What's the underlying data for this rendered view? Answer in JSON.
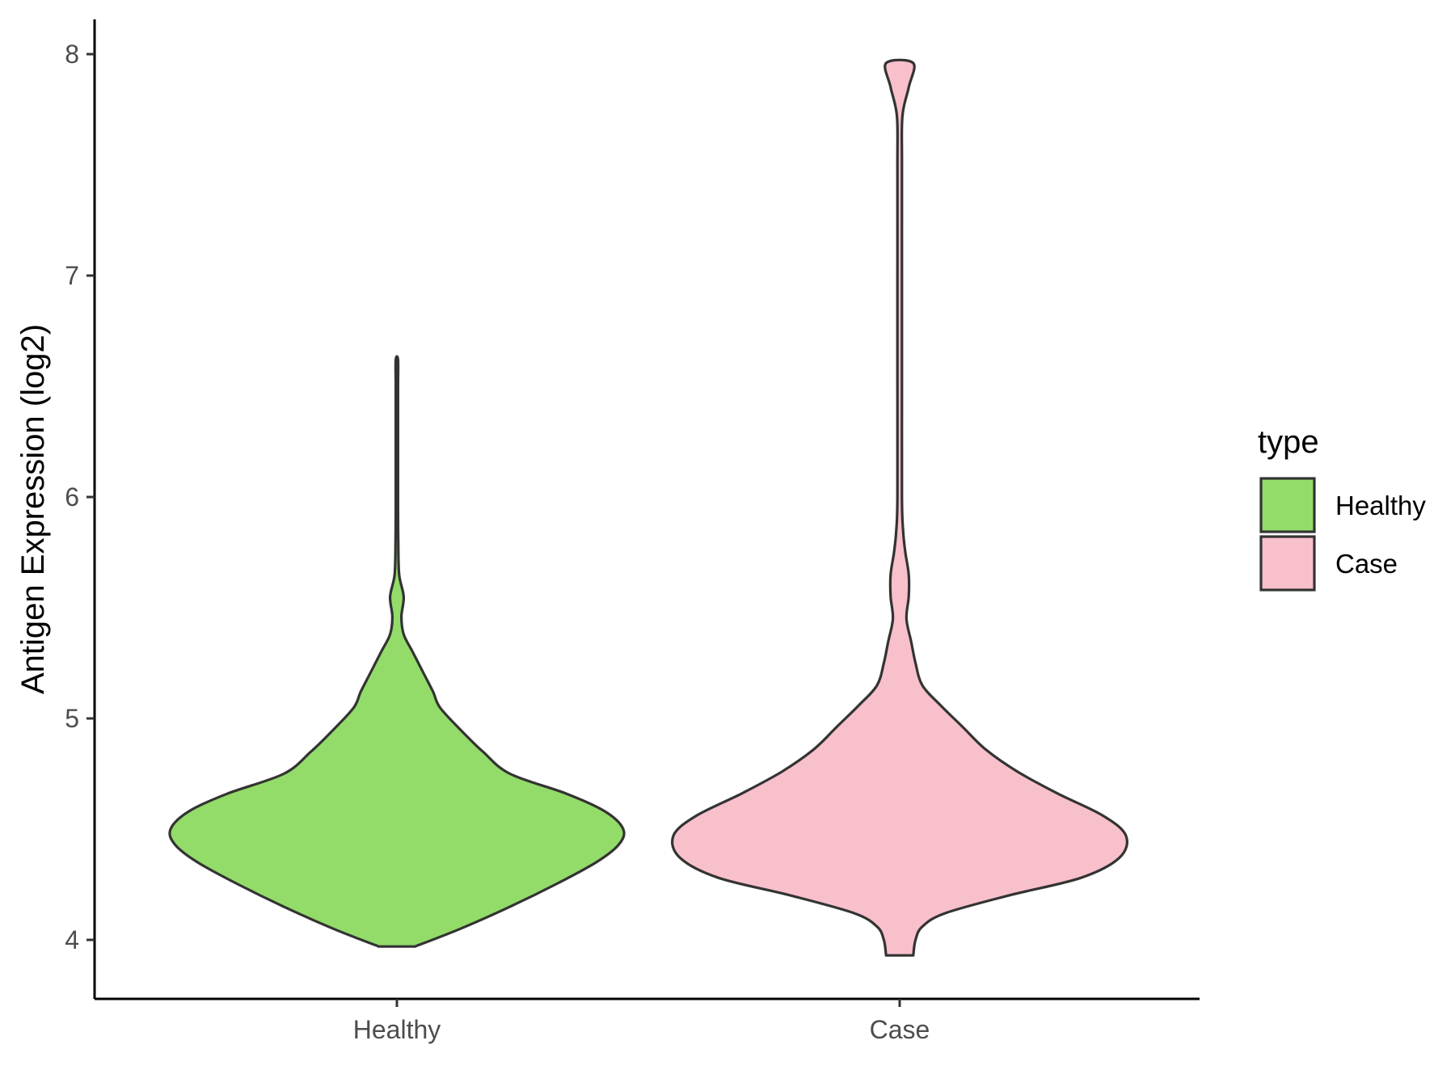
{
  "chart_data": {
    "type": "violin",
    "ylabel": "Antigen Expression (log2)",
    "xlabel": "",
    "categories": [
      "Healthy",
      "Case"
    ],
    "yticks": [
      4,
      5,
      6,
      7,
      8
    ],
    "ylim": [
      3.72,
      8.18
    ],
    "grid": false,
    "legend": {
      "title": "type",
      "position": "right",
      "entries": [
        {
          "label": "Healthy",
          "color": "#93DC69"
        },
        {
          "label": "Case",
          "color": "#F8C0CB"
        }
      ]
    },
    "series": [
      {
        "name": "Healthy",
        "color": "#93DC69",
        "min": 3.97,
        "max": 6.62,
        "density": [
          [
            3.97,
            0.08
          ],
          [
            4.05,
            0.28
          ],
          [
            4.15,
            0.5
          ],
          [
            4.25,
            0.7
          ],
          [
            4.35,
            0.88
          ],
          [
            4.43,
            0.98
          ],
          [
            4.5,
            1.0
          ],
          [
            4.58,
            0.92
          ],
          [
            4.66,
            0.75
          ],
          [
            4.75,
            0.5
          ],
          [
            4.85,
            0.38
          ],
          [
            4.95,
            0.28
          ],
          [
            5.05,
            0.19
          ],
          [
            5.12,
            0.16
          ],
          [
            5.2,
            0.12
          ],
          [
            5.3,
            0.07
          ],
          [
            5.38,
            0.03
          ],
          [
            5.46,
            0.02
          ],
          [
            5.55,
            0.03
          ],
          [
            5.65,
            0.01
          ],
          [
            5.8,
            0.006
          ],
          [
            6.0,
            0.005
          ],
          [
            6.3,
            0.005
          ],
          [
            6.5,
            0.005
          ],
          [
            6.62,
            0.005
          ]
        ]
      },
      {
        "name": "Case",
        "color": "#F8C0CB",
        "min": 3.93,
        "max": 7.96,
        "density": [
          [
            3.93,
            0.06
          ],
          [
            4.0,
            0.07
          ],
          [
            4.06,
            0.1
          ],
          [
            4.12,
            0.2
          ],
          [
            4.2,
            0.48
          ],
          [
            4.28,
            0.8
          ],
          [
            4.37,
            0.97
          ],
          [
            4.47,
            1.0
          ],
          [
            4.56,
            0.9
          ],
          [
            4.66,
            0.7
          ],
          [
            4.76,
            0.52
          ],
          [
            4.86,
            0.38
          ],
          [
            4.96,
            0.28
          ],
          [
            5.06,
            0.18
          ],
          [
            5.15,
            0.1
          ],
          [
            5.25,
            0.07
          ],
          [
            5.35,
            0.05
          ],
          [
            5.45,
            0.03
          ],
          [
            5.55,
            0.04
          ],
          [
            5.65,
            0.04
          ],
          [
            5.75,
            0.025
          ],
          [
            5.85,
            0.015
          ],
          [
            6.0,
            0.01
          ],
          [
            6.5,
            0.01
          ],
          [
            7.0,
            0.01
          ],
          [
            7.5,
            0.01
          ],
          [
            7.72,
            0.012
          ],
          [
            7.85,
            0.04
          ],
          [
            7.96,
            0.06
          ]
        ]
      }
    ]
  }
}
